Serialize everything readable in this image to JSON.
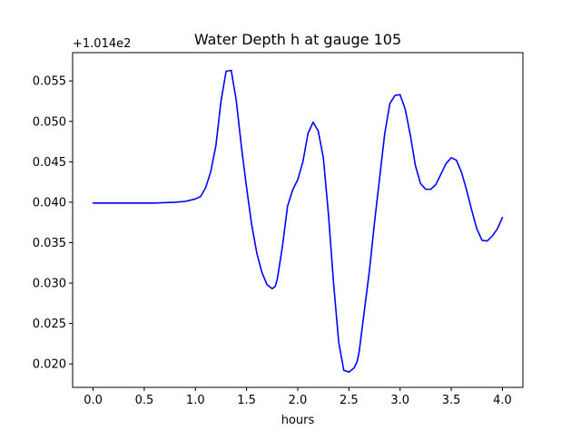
{
  "chart_data": {
    "type": "line",
    "title": "Water Depth h at gauge 105",
    "xlabel": "hours",
    "ylabel": "",
    "offset_label": "+1.014e2",
    "xlim": [
      -0.2,
      4.2
    ],
    "ylim": [
      0.0171,
      0.0585
    ],
    "xticks": [
      0.0,
      0.5,
      1.0,
      1.5,
      2.0,
      2.5,
      3.0,
      3.5,
      4.0
    ],
    "xtick_labels": [
      "0.0",
      "0.5",
      "1.0",
      "1.5",
      "2.0",
      "2.5",
      "3.0",
      "3.5",
      "4.0"
    ],
    "yticks": [
      0.02,
      0.025,
      0.03,
      0.035,
      0.04,
      0.045,
      0.05,
      0.055
    ],
    "ytick_labels": [
      "0.020",
      "0.025",
      "0.030",
      "0.035",
      "0.040",
      "0.045",
      "0.050",
      "0.055"
    ],
    "grid": false,
    "series": [
      {
        "color": "#0000ff",
        "x": [
          0.0,
          0.3,
          0.6,
          0.8,
          0.9,
          1.0,
          1.05,
          1.1,
          1.15,
          1.2,
          1.25,
          1.3,
          1.35,
          1.4,
          1.45,
          1.5,
          1.55,
          1.6,
          1.65,
          1.7,
          1.75,
          1.78,
          1.8,
          1.85,
          1.9,
          1.95,
          2.0,
          2.05,
          2.1,
          2.15,
          2.2,
          2.25,
          2.3,
          2.35,
          2.4,
          2.45,
          2.5,
          2.55,
          2.58,
          2.6,
          2.65,
          2.7,
          2.75,
          2.8,
          2.85,
          2.9,
          2.95,
          3.0,
          3.05,
          3.1,
          3.15,
          3.2,
          3.25,
          3.3,
          3.35,
          3.4,
          3.45,
          3.5,
          3.55,
          3.6,
          3.65,
          3.7,
          3.75,
          3.8,
          3.85,
          3.9,
          3.95,
          4.0
        ],
        "y": [
          0.0399,
          0.0399,
          0.0399,
          0.04,
          0.0401,
          0.0404,
          0.0407,
          0.0418,
          0.0438,
          0.047,
          0.0525,
          0.0562,
          0.0563,
          0.0525,
          0.0468,
          0.0418,
          0.0372,
          0.0337,
          0.0313,
          0.0298,
          0.0293,
          0.0296,
          0.0305,
          0.0345,
          0.0395,
          0.0415,
          0.0428,
          0.045,
          0.0485,
          0.0499,
          0.0488,
          0.0455,
          0.0385,
          0.03,
          0.0227,
          0.0192,
          0.019,
          0.0195,
          0.0203,
          0.0215,
          0.0265,
          0.0315,
          0.0375,
          0.043,
          0.0485,
          0.0522,
          0.0532,
          0.0533,
          0.0515,
          0.0483,
          0.0445,
          0.0423,
          0.0416,
          0.0416,
          0.0422,
          0.0435,
          0.0448,
          0.0455,
          0.0452,
          0.0437,
          0.0415,
          0.039,
          0.0367,
          0.0353,
          0.0352,
          0.0358,
          0.0367,
          0.0381
        ]
      }
    ]
  }
}
